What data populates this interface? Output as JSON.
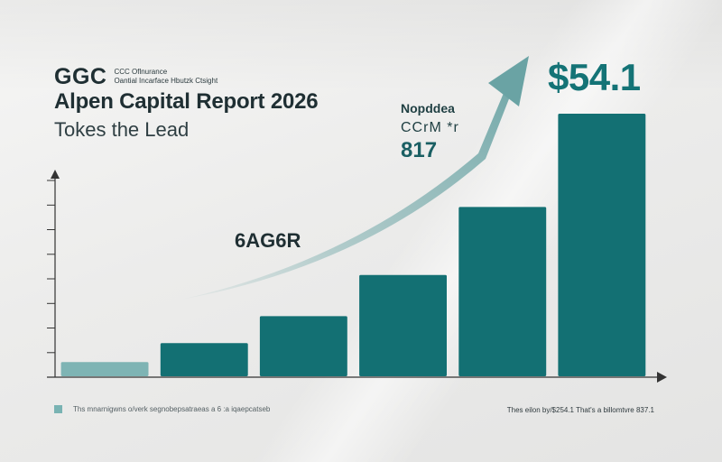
{
  "header": {
    "ggc": "GGC",
    "sub_line_1": "CCC Oflnurance",
    "sub_line_2": "Oantial Incarface Hbutzk Ctsight",
    "report_title": "Alpen Capital Report 2026",
    "tagline": "Tokes the Lead"
  },
  "callout": {
    "line1": "Nopddea",
    "line2": "CCrM *r",
    "value": "817"
  },
  "headline_value": "$54.1",
  "cagr_label": "6AG6R",
  "footer": {
    "left_note": "Ths mnarnigwns o/verk segnobepsatraeas a 6 :a iqaepcatseb",
    "right_note": "Thes eilon by/$254.1 That's a billomtvre 837.1"
  },
  "colors": {
    "bar_main": "#137073",
    "bar_first": "#7eb4b4",
    "arrow": "#7fb0b0",
    "axis": "#333333"
  },
  "chart_data": {
    "type": "bar",
    "categories": [
      "",
      "",
      "",
      "",
      "",
      ""
    ],
    "values": [
      4.5,
      10.5,
      19,
      32,
      53.5,
      83
    ],
    "ylim": [
      0,
      87
    ],
    "y_ticks": 9,
    "grid": false,
    "trend_arrow": true
  }
}
